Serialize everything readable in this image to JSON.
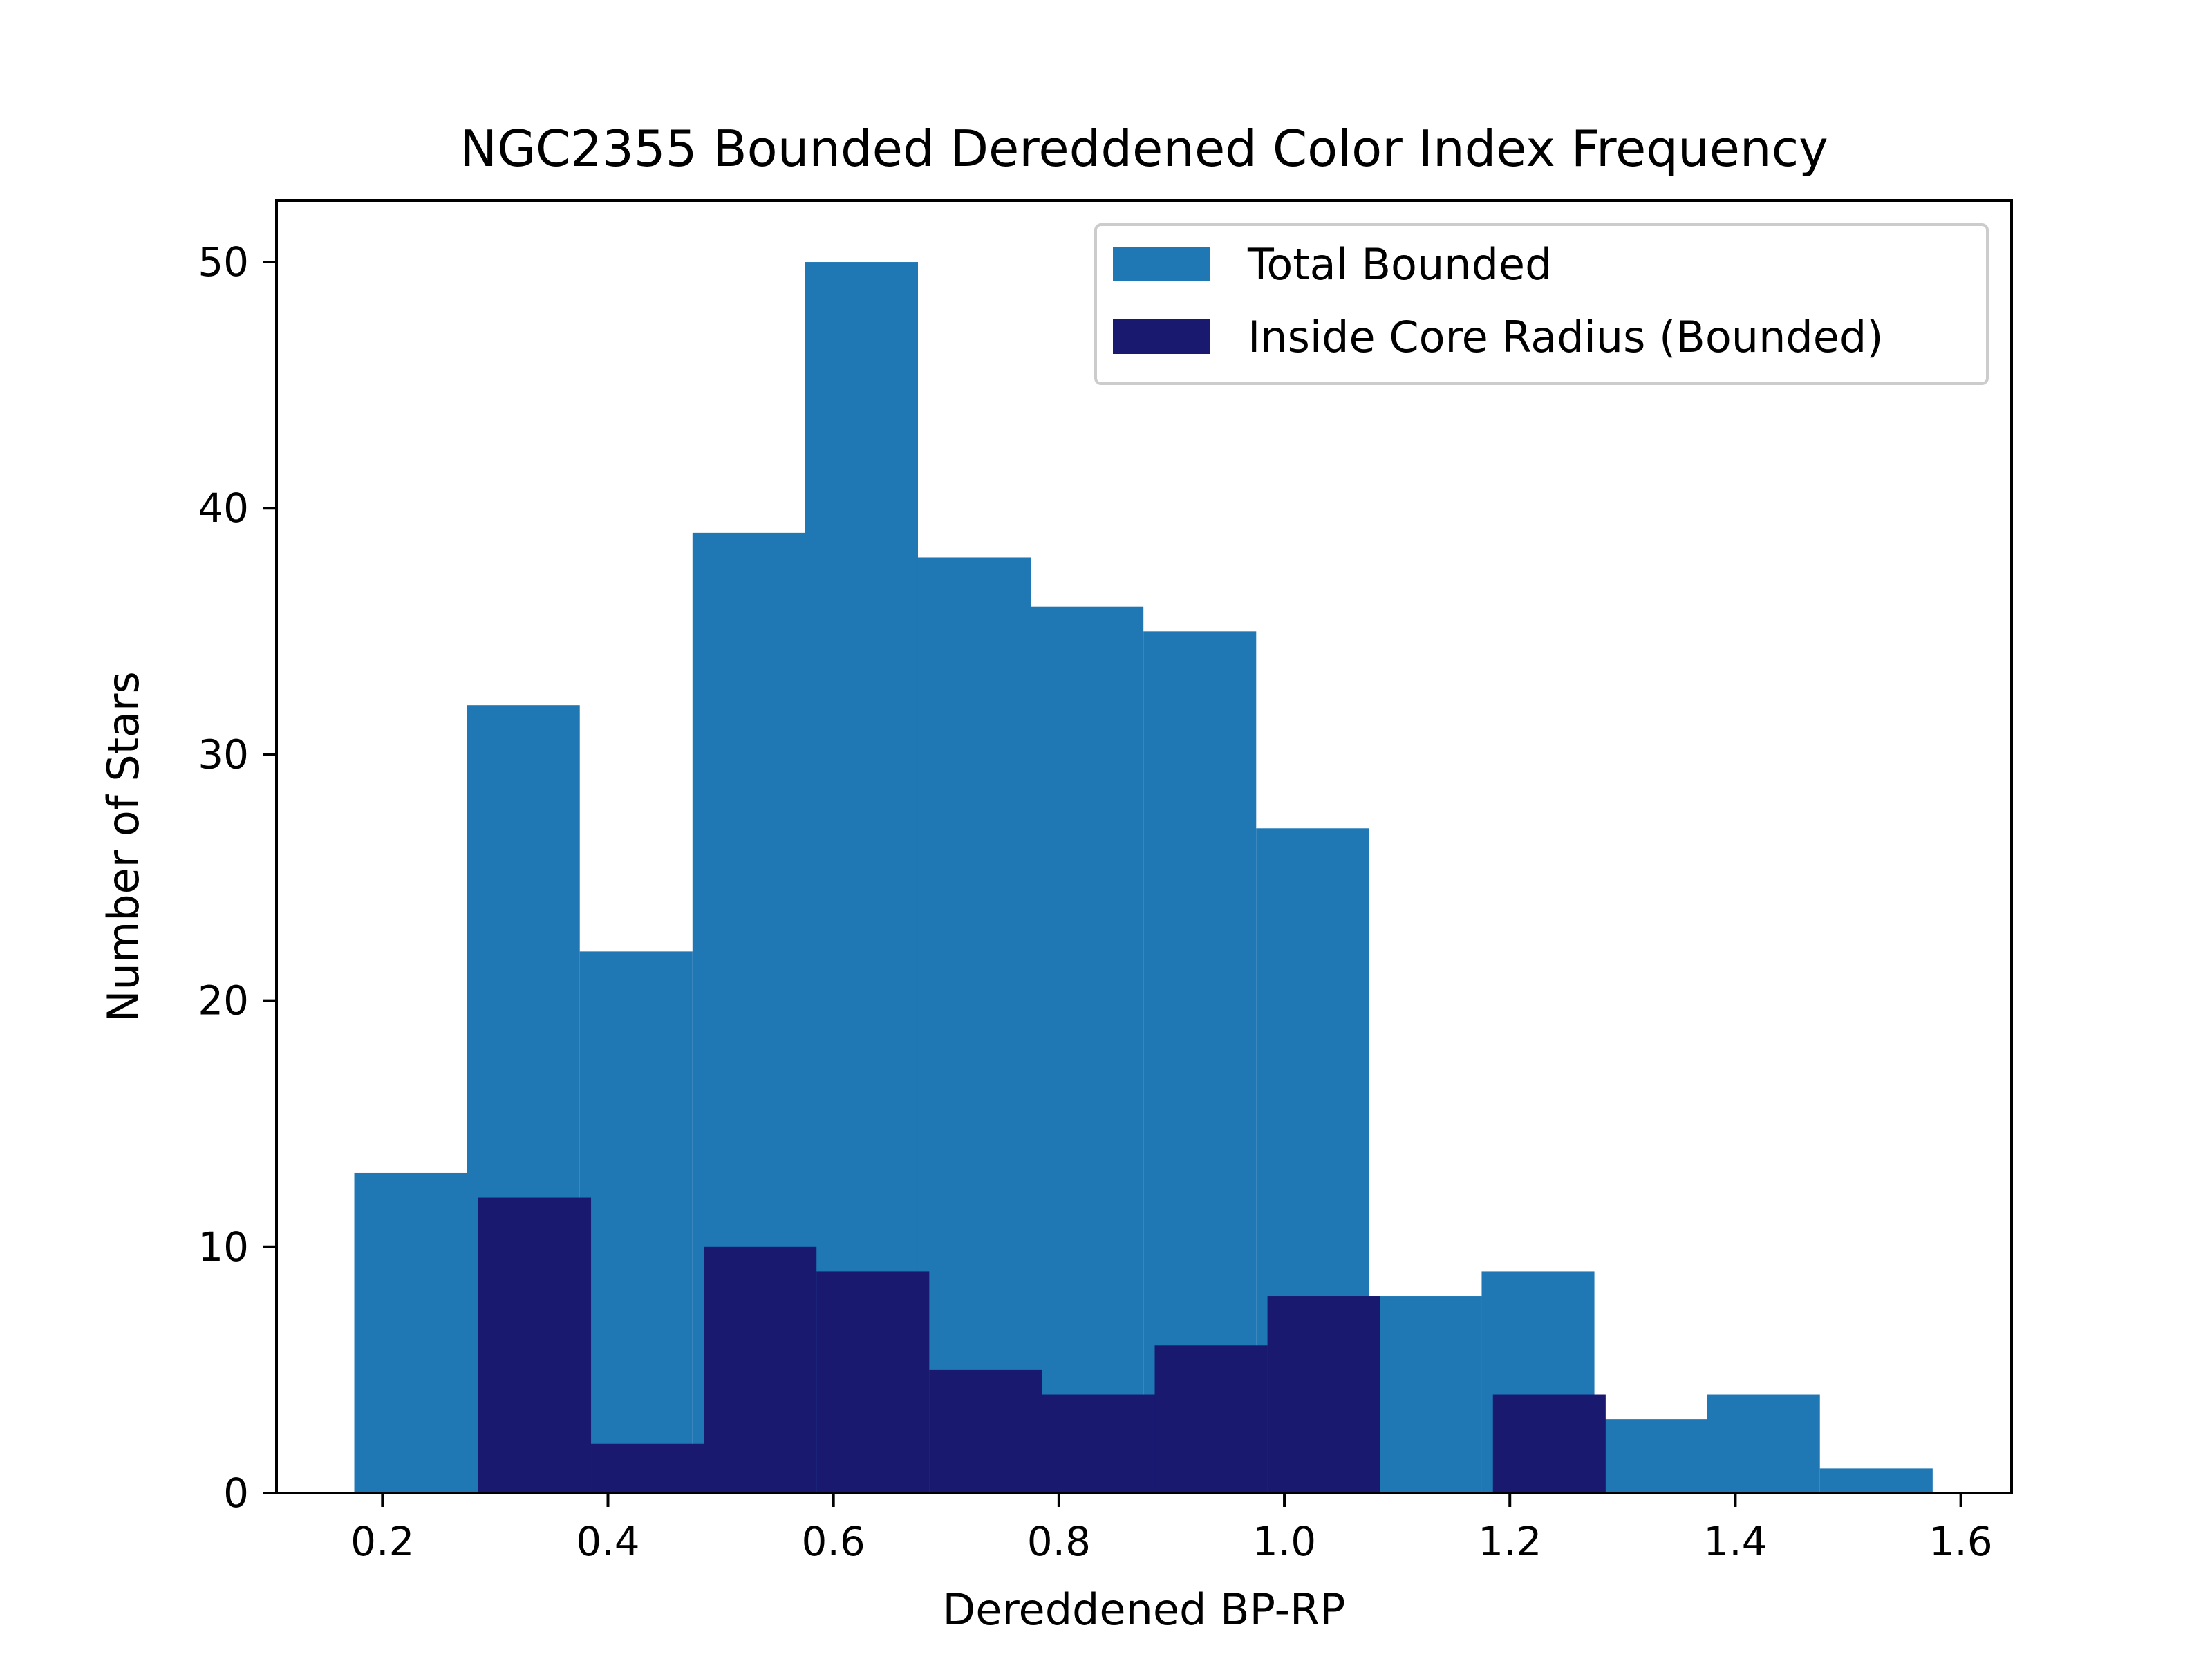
{
  "chart_data": {
    "type": "bar",
    "title": "NGC2355 Bounded Dereddened Color Index Frequency",
    "xlabel": "Dereddened BP-RP",
    "ylabel": "Number of Stars",
    "xlim": [
      0.106,
      1.645
    ],
    "ylim": [
      0,
      52.5
    ],
    "xticks": [
      0.2,
      0.4,
      0.6,
      0.8,
      1.0,
      1.2,
      1.4,
      1.6
    ],
    "xtick_labels": [
      "0.2",
      "0.4",
      "0.6",
      "0.8",
      "1.0",
      "1.2",
      "1.4",
      "1.6"
    ],
    "yticks": [
      0,
      10,
      20,
      30,
      40,
      50
    ],
    "ytick_labels": [
      "0",
      "10",
      "20",
      "30",
      "40",
      "50"
    ],
    "grid": false,
    "legend_position": "top-right",
    "series": [
      {
        "name": "Total Bounded",
        "color": "#1f77b4",
        "bin_edges": [
          0.175,
          0.275,
          0.375,
          0.475,
          0.575,
          0.675,
          0.775,
          0.875,
          0.975,
          1.075,
          1.175,
          1.275,
          1.375,
          1.475,
          1.575
        ],
        "values": [
          13,
          32,
          22,
          39,
          50,
          38,
          36,
          35,
          27,
          8,
          9,
          3,
          4,
          1
        ]
      },
      {
        "name": "Inside Core Radius (Bounded)",
        "color": "#191970",
        "bin_edges": [
          0.285,
          0.385,
          0.485,
          0.585,
          0.685,
          0.785,
          0.885,
          0.985,
          1.085,
          1.185,
          1.285
        ],
        "values": [
          12,
          2,
          10,
          9,
          5,
          4,
          6,
          8,
          0,
          4
        ]
      }
    ]
  }
}
